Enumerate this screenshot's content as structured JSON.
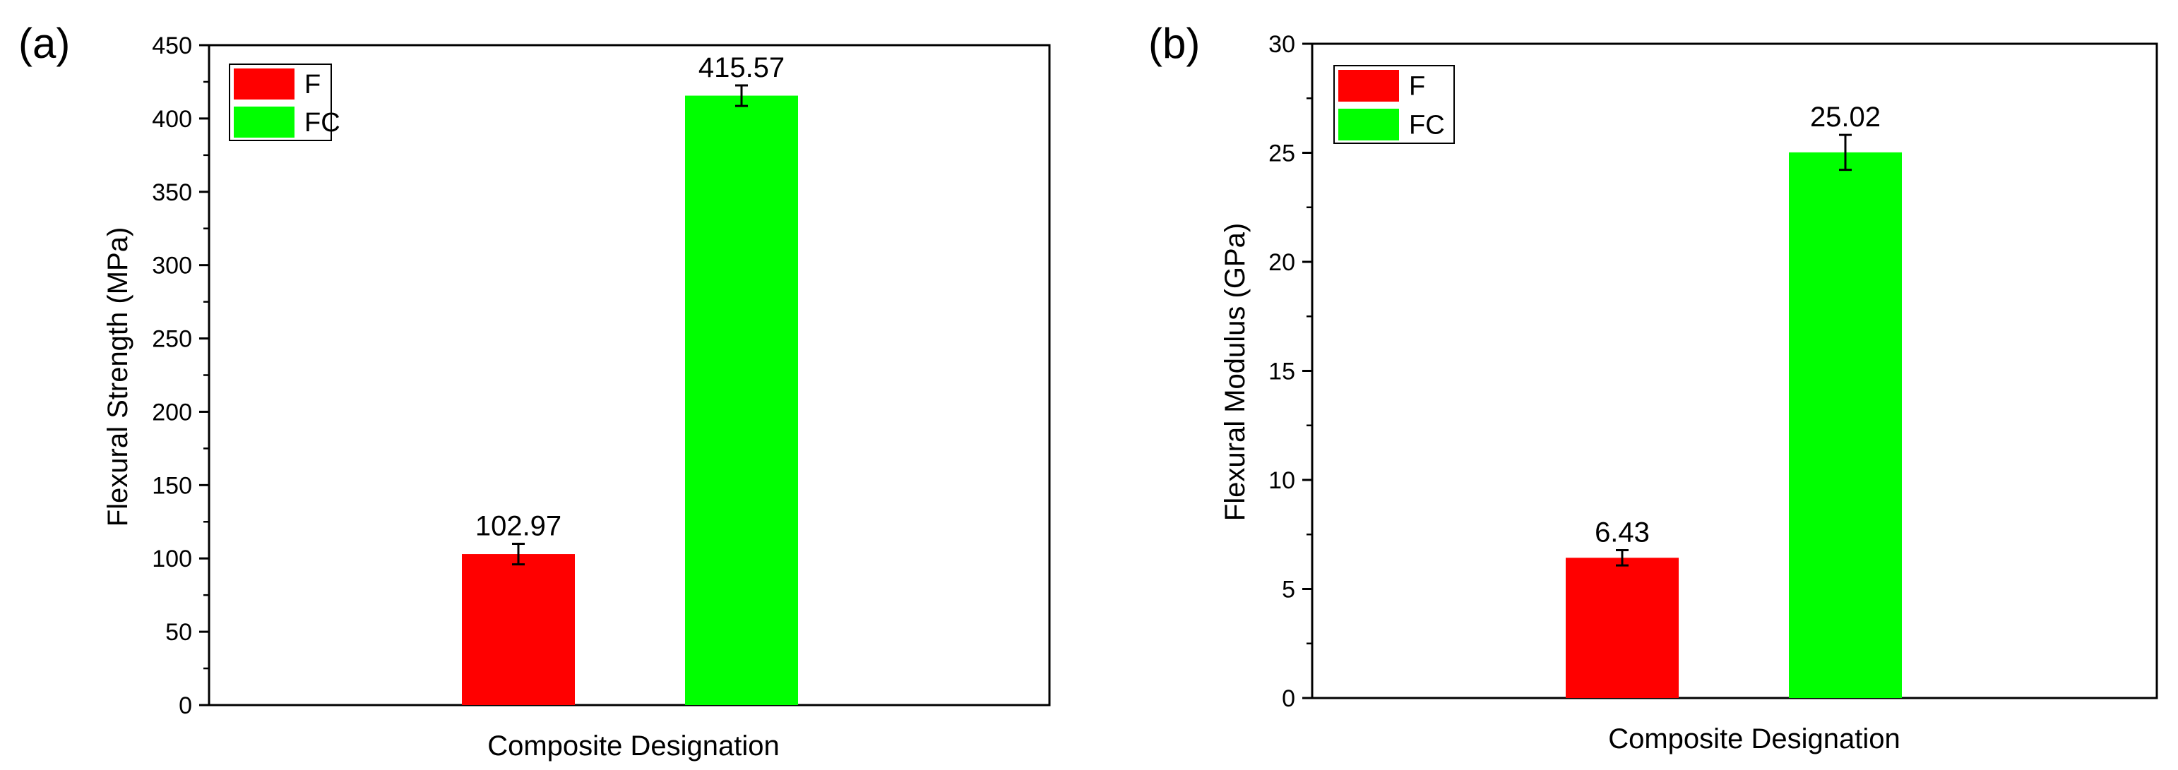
{
  "chart_data": [
    {
      "panel_label": "(a)",
      "type": "bar",
      "ylabel": "Flexural Strength (MPa)",
      "xlabel": "Composite Designation",
      "ylim": [
        0,
        450
      ],
      "yticks": [
        "0",
        "50",
        "100",
        "150",
        "200",
        "250",
        "300",
        "350",
        "400",
        "450"
      ],
      "legend_position": "top-left",
      "series": [
        {
          "name": "F",
          "value": 102.97,
          "value_label": "102.97",
          "error": 7,
          "color": "#ff0000"
        },
        {
          "name": "FC",
          "value": 415.57,
          "value_label": "415.57",
          "error": 7,
          "color": "#00ff00"
        }
      ]
    },
    {
      "panel_label": "(b)",
      "type": "bar",
      "ylabel": "Flexural Modulus (GPa)",
      "xlabel": "Composite Designation",
      "ylim": [
        0,
        30
      ],
      "yticks": [
        "0",
        "5",
        "10",
        "15",
        "20",
        "25",
        "30"
      ],
      "legend_position": "top-left",
      "series": [
        {
          "name": "F",
          "value": 6.43,
          "value_label": "6.43",
          "error": 0.35,
          "color": "#ff0000"
        },
        {
          "name": "FC",
          "value": 25.02,
          "value_label": "25.02",
          "error": 0.8,
          "color": "#00ff00"
        }
      ]
    }
  ]
}
